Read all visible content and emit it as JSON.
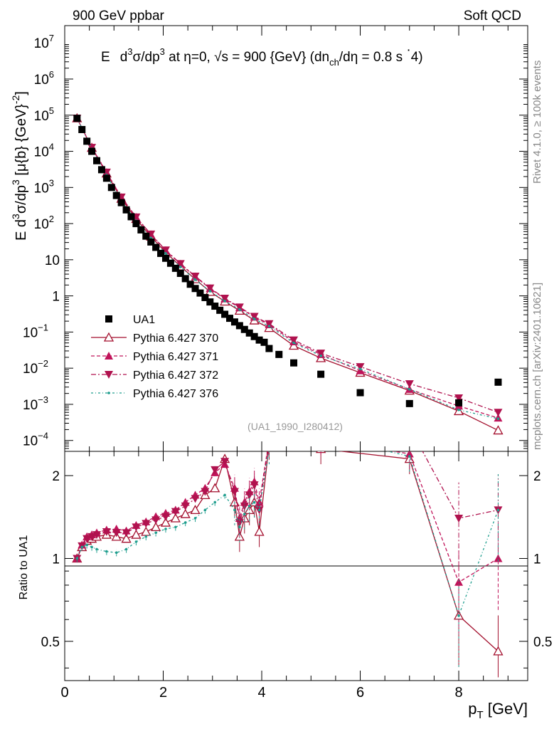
{
  "header": {
    "left": "900 GeV ppbar",
    "right": "Soft QCD"
  },
  "side": {
    "rivet": "Rivet 4.1.0, ≥ 100k events",
    "site": "mcplots.cern.ch [arXiv:2401.10621]"
  },
  "colors": {
    "data": "#000000",
    "p370": "#a30f2d",
    "p371": "#c0145a",
    "p372": "#b0124e",
    "p376": "#1f9e8e"
  },
  "chart_data": {
    "type": "scatter",
    "title": "E d³σ/dp³ at η=0, √s = 900 {GeV} (dn_ch/dη = 0.8 s ⁻4)",
    "title_parts": {
      "E": "E",
      "d1": "d",
      "sup3a": "3",
      "sigma": "σ/dp",
      "sup3b": "3",
      "rest1": " at η=0, ",
      "sqrt": "√",
      "rest2": "s = 900 {GeV} (dn",
      "sub": "ch",
      "rest3": "/dη = 0.8 s ",
      "dot": "·",
      "rest4": "4)"
    },
    "analysis": "(UA1_1990_I280412)",
    "ylabel": "E d³σ/dp³ [μ{b} {GeV}⁻²]",
    "ylabel_parts": {
      "a": "E d",
      "sup1": "3",
      "b": "σ/dp",
      "sup2": "3",
      "c": " [μ{b} {GeV}",
      "sup3": "-2",
      "d": "]"
    },
    "xlabel": "p_T [GeV]",
    "xlabel_parts": {
      "a": "p",
      "sub": "T",
      "b": " [GeV]"
    },
    "ratio_ylabel": "Ratio to UA1",
    "xlim": [
      0,
      9.4
    ],
    "ylim_log": [
      5e-05,
      30000000
    ],
    "ratio_ylim": [
      0.36,
      2.45
    ],
    "x_ticks": [
      0,
      2,
      4,
      6,
      8
    ],
    "x_tick_labels": [
      "0",
      "2",
      "4",
      "6",
      "8"
    ],
    "y_tick_labels": [
      {
        "base": "10",
        "exp": "7",
        "v": 10000000
      },
      {
        "base": "10",
        "exp": "6",
        "v": 1000000
      },
      {
        "base": "10",
        "exp": "5",
        "v": 100000
      },
      {
        "base": "10",
        "exp": "4",
        "v": 10000
      },
      {
        "base": "10",
        "exp": "3",
        "v": 1000
      },
      {
        "base": "10",
        "exp": "2",
        "v": 100
      },
      {
        "base": "10",
        "exp": "",
        "v": 10
      },
      {
        "base": "1",
        "exp": "",
        "v": 1
      },
      {
        "base": "10",
        "exp": "−1",
        "v": 0.1
      },
      {
        "base": "10",
        "exp": "−2",
        "v": 0.01
      },
      {
        "base": "10",
        "exp": "−3",
        "v": 0.001
      },
      {
        "base": "10",
        "exp": "−4",
        "v": 0.0001
      }
    ],
    "ratio_ticks": [
      0.5,
      1,
      2
    ],
    "ratio_tick_labels": [
      "0.5",
      "1",
      "2"
    ],
    "legend": [
      {
        "label": "UA1",
        "key": "data"
      },
      {
        "label": "Pythia 6.427 370",
        "key": "p370"
      },
      {
        "label": "Pythia 6.427 371",
        "key": "p371"
      },
      {
        "label": "Pythia 6.427 372",
        "key": "p372"
      },
      {
        "label": "Pythia 6.427 376",
        "key": "p376"
      }
    ],
    "data_x": [
      0.25,
      0.35,
      0.45,
      0.55,
      0.65,
      0.75,
      0.85,
      0.95,
      1.05,
      1.15,
      1.25,
      1.35,
      1.45,
      1.55,
      1.65,
      1.75,
      1.85,
      1.95,
      2.05,
      2.15,
      2.25,
      2.35,
      2.45,
      2.55,
      2.65,
      2.75,
      2.85,
      2.95,
      3.05,
      3.15,
      3.25,
      3.35,
      3.45,
      3.55,
      3.65,
      3.75,
      3.85,
      3.95,
      4.05,
      4.15,
      4.35,
      4.65,
      5.2,
      6.0,
      7.0,
      8.0,
      8.8
    ],
    "data_y": [
      82000,
      40000,
      19000,
      10000,
      5500,
      3100,
      1800,
      1000,
      600,
      380,
      240,
      155,
      100,
      67,
      45,
      31,
      22,
      15,
      11,
      8,
      5.8,
      4.2,
      3.0,
      2.1,
      1.6,
      1.2,
      0.9,
      0.68,
      0.52,
      0.4,
      0.31,
      0.24,
      0.19,
      0.15,
      0.118,
      0.094,
      0.075,
      0.06,
      0.052,
      0.035,
      0.024,
      0.014,
      0.0068,
      0.0021,
      0.00105,
      0.0011,
      0.0041
    ],
    "series": [
      {
        "name": "Pythia 6.427 370",
        "key": "p370",
        "x": [
          0.25,
          0.55,
          0.85,
          1.15,
          1.45,
          1.75,
          2.05,
          2.35,
          2.65,
          2.95,
          3.25,
          3.55,
          3.85,
          4.15,
          4.65,
          5.2,
          6.0,
          7.0,
          8.0,
          8.8
        ],
        "y": [
          82000,
          12500,
          2450,
          490,
          135,
          44,
          16,
          6.6,
          2.9,
          1.3,
          0.7,
          0.39,
          0.21,
          0.13,
          0.042,
          0.019,
          0.0075,
          0.0024,
          0.00065,
          0.00019
        ]
      },
      {
        "name": "Pythia 6.427 371",
        "key": "p371",
        "x": [
          0.25,
          0.55,
          0.85,
          1.15,
          1.45,
          1.75,
          2.05,
          2.35,
          2.65,
          2.95,
          3.25,
          3.55,
          3.85,
          4.15,
          4.65,
          5.2,
          6.0,
          7.0,
          8.0,
          8.8
        ],
        "y": [
          82000,
          12700,
          2600,
          530,
          150,
          50,
          18,
          7.6,
          3.4,
          1.6,
          0.83,
          0.47,
          0.26,
          0.16,
          0.054,
          0.024,
          0.0085,
          0.0026,
          0.0009,
          0.00042
        ]
      },
      {
        "name": "Pythia 6.427 372",
        "key": "p372",
        "x": [
          0.25,
          0.55,
          0.85,
          1.15,
          1.45,
          1.75,
          2.05,
          2.35,
          2.65,
          2.95,
          3.25,
          3.55,
          3.85,
          4.15,
          4.65,
          5.2,
          6.0,
          7.0,
          8.0,
          8.8
        ],
        "y": [
          82000,
          12800,
          2650,
          540,
          152,
          51,
          18.5,
          7.8,
          3.5,
          1.65,
          0.86,
          0.49,
          0.27,
          0.17,
          0.06,
          0.026,
          0.011,
          0.0037,
          0.0015,
          0.0006
        ]
      },
      {
        "name": "Pythia 6.427 376",
        "key": "p376",
        "x": [
          0.25,
          0.55,
          0.85,
          1.15,
          1.45,
          1.75,
          2.05,
          2.35,
          2.65,
          2.95,
          3.25,
          3.55,
          3.85,
          4.15,
          4.65,
          5.2,
          6.0,
          7.0,
          8.0,
          8.8
        ],
        "y": [
          82000,
          11800,
          2200,
          420,
          120,
          40,
          15,
          6.3,
          2.8,
          1.35,
          0.72,
          0.42,
          0.23,
          0.145,
          0.05,
          0.022,
          0.0095,
          0.0026,
          0.0007,
          0.0004
        ]
      }
    ],
    "ratio_series": [
      {
        "key": "p370",
        "x": [
          0.25,
          0.35,
          0.45,
          0.55,
          0.65,
          0.85,
          1.05,
          1.25,
          1.45,
          1.65,
          1.85,
          2.05,
          2.25,
          2.45,
          2.65,
          2.85,
          3.05,
          3.25,
          3.45,
          3.55,
          3.65,
          3.75,
          3.85,
          3.95,
          4.15,
          5.2,
          7.0,
          8.0,
          8.8
        ],
        "y": [
          1.0,
          1.1,
          1.16,
          1.18,
          1.2,
          1.22,
          1.2,
          1.18,
          1.22,
          1.25,
          1.3,
          1.35,
          1.4,
          1.45,
          1.5,
          1.7,
          1.8,
          2.3,
          1.6,
          1.2,
          1.4,
          1.5,
          1.6,
          1.25,
          2.6,
          2.5,
          2.3,
          0.62,
          0.46
        ]
      },
      {
        "key": "p371",
        "x": [
          0.25,
          0.35,
          0.45,
          0.55,
          0.65,
          0.85,
          1.05,
          1.25,
          1.45,
          1.65,
          1.85,
          2.05,
          2.25,
          2.45,
          2.65,
          2.85,
          3.05,
          3.25,
          3.45,
          3.55,
          3.65,
          3.75,
          3.85,
          3.95,
          4.15,
          5.2,
          7.0,
          8.0,
          8.8
        ],
        "y": [
          1.0,
          1.12,
          1.2,
          1.22,
          1.24,
          1.27,
          1.28,
          1.26,
          1.32,
          1.36,
          1.42,
          1.46,
          1.5,
          1.6,
          1.7,
          1.8,
          2.05,
          2.2,
          1.8,
          1.4,
          1.6,
          1.75,
          1.9,
          1.6,
          2.7,
          2.7,
          2.4,
          0.82,
          1.0
        ]
      },
      {
        "key": "p372",
        "x": [
          0.25,
          0.35,
          0.45,
          0.55,
          0.65,
          0.85,
          1.05,
          1.25,
          1.45,
          1.65,
          1.85,
          2.05,
          2.25,
          2.45,
          2.65,
          2.85,
          3.05,
          3.25,
          3.45,
          3.55,
          3.65,
          3.75,
          3.85,
          3.95,
          4.15,
          5.2,
          7.0,
          8.0,
          8.8
        ],
        "y": [
          1.0,
          1.11,
          1.18,
          1.2,
          1.22,
          1.25,
          1.24,
          1.24,
          1.3,
          1.34,
          1.38,
          1.42,
          1.48,
          1.55,
          1.65,
          1.75,
          2.1,
          2.25,
          1.75,
          1.35,
          1.55,
          1.7,
          1.85,
          1.5,
          2.7,
          2.8,
          3.0,
          1.4,
          1.5
        ]
      },
      {
        "key": "p376",
        "x": [
          0.25,
          0.35,
          0.45,
          0.55,
          0.65,
          0.85,
          1.05,
          1.25,
          1.45,
          1.65,
          1.85,
          2.05,
          2.25,
          2.45,
          2.65,
          2.85,
          3.05,
          3.25,
          3.45,
          3.55,
          3.65,
          3.75,
          3.85,
          3.95,
          4.15,
          5.2,
          7.0,
          8.0,
          8.8
        ],
        "y": [
          1.0,
          1.1,
          1.12,
          1.1,
          1.08,
          1.06,
          1.05,
          1.08,
          1.15,
          1.2,
          1.24,
          1.28,
          1.3,
          1.35,
          1.4,
          1.5,
          1.6,
          1.7,
          1.5,
          1.3,
          1.45,
          1.55,
          1.6,
          1.5,
          2.5,
          2.8,
          2.35,
          0.62,
          1.5
        ]
      }
    ]
  }
}
